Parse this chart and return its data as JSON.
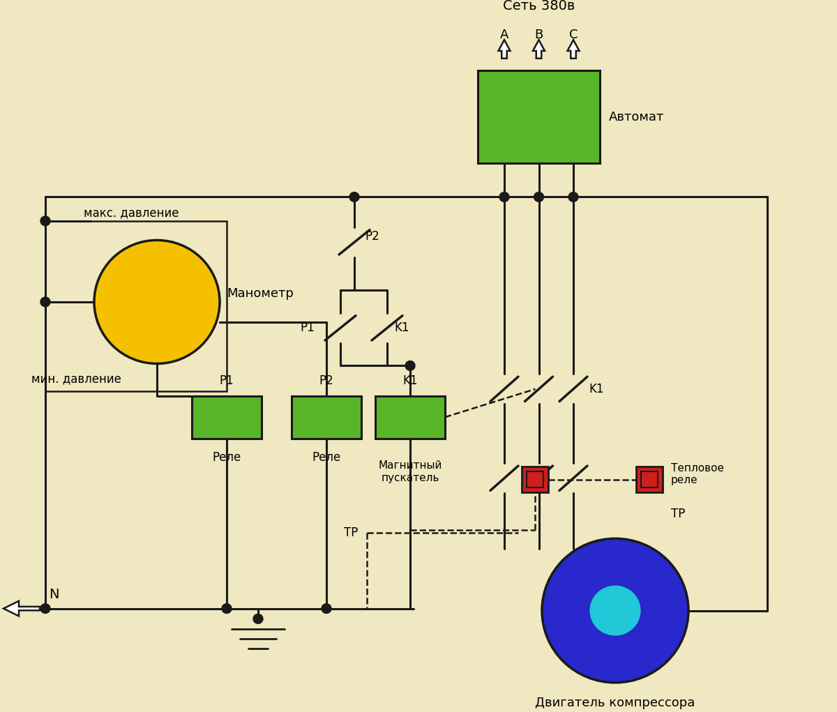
{
  "bg_color": "#f0e8c0",
  "line_color": "#1a1a1a",
  "green_color": "#5ab528",
  "yellow_color": "#f5c000",
  "red_color": "#cc2020",
  "blue_color": "#2828cc",
  "cyan_color": "#20c8d8",
  "lbl_set": "Сеть 380в",
  "lbl_avtomat": "Автомат",
  "lbl_manometr": "Манометр",
  "lbl_maks": "макс. давление",
  "lbl_min": "мин. давление",
  "lbl_rele": "Реле",
  "lbl_magn": "Магнитный\nпускатель",
  "lbl_teplo": "Тепловое\nреле",
  "lbl_TR": "ТР",
  "lbl_motor": "Двигатель компрессора",
  "lbl_N": "N",
  "lbl_A": "A",
  "lbl_B": "B",
  "lbl_C": "C",
  "lbl_P1": "P1",
  "lbl_P2": "P2",
  "lbl_K1": "K1"
}
